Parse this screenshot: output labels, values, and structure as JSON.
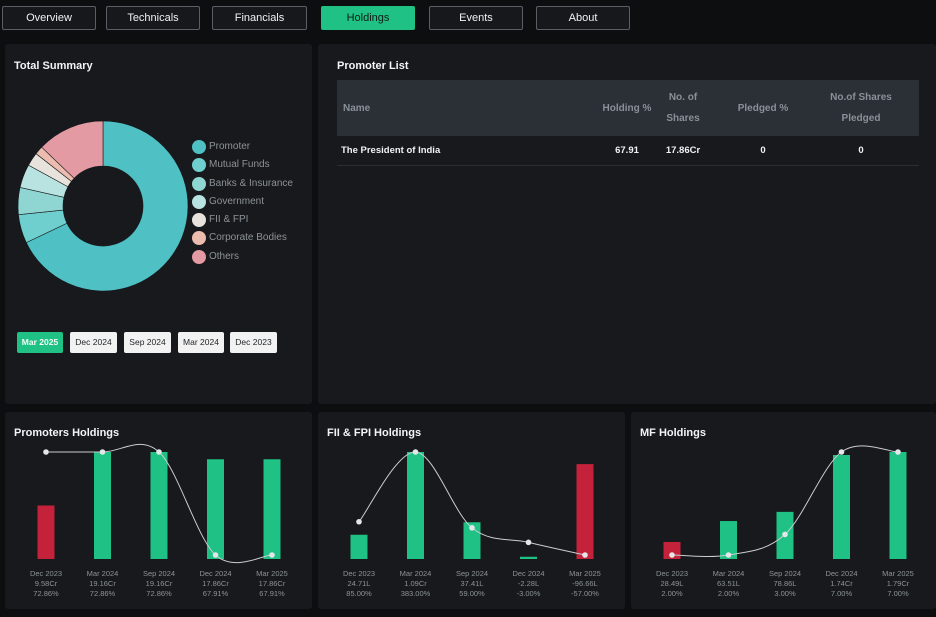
{
  "tabs": [
    {
      "label": "Overview",
      "active": false
    },
    {
      "label": "Technicals",
      "active": false
    },
    {
      "label": "Financials",
      "active": false
    },
    {
      "label": "Holdings",
      "active": true
    },
    {
      "label": "Events",
      "active": false
    },
    {
      "label": "About",
      "active": false
    }
  ],
  "total_summary": {
    "title": "Total Summary",
    "legend": [
      {
        "label": "Promoter",
        "color": "#4fc1c4"
      },
      {
        "label": "Mutual Funds",
        "color": "#6fcfce"
      },
      {
        "label": "Banks & Insurance",
        "color": "#8fd6d3"
      },
      {
        "label": "Government",
        "color": "#b8e3e0"
      },
      {
        "label": "FII & FPI",
        "color": "#e8e2dc"
      },
      {
        "label": "Corporate Bodies",
        "color": "#ecbcae"
      },
      {
        "label": "Others",
        "color": "#e39aa2"
      }
    ],
    "periods": [
      {
        "label": "Mar 2025",
        "active": true
      },
      {
        "label": "Dec 2024",
        "active": false
      },
      {
        "label": "Sep 2024",
        "active": false
      },
      {
        "label": "Mar 2024",
        "active": false
      },
      {
        "label": "Dec 2023",
        "active": false
      }
    ]
  },
  "promoter_list": {
    "title": "Promoter List",
    "headers": {
      "name": "Name",
      "holding": "Holding %",
      "shares_line1": "No. of",
      "shares_line2": "Shares",
      "pledged": "Pledged %",
      "pledged_shares_line1": "No.of Shares",
      "pledged_shares_line2": "Pledged"
    },
    "rows": [
      {
        "name": "The President of India",
        "holding": "67.91",
        "shares": "17.86Cr",
        "pledged": "0",
        "pledged_shares": "0"
      }
    ]
  },
  "chart_data": [
    {
      "type": "bar",
      "title": "Promoters Holdings",
      "categories": [
        "Dec 2023",
        "Mar 2024",
        "Sep 2024",
        "Dec 2024",
        "Mar 2025"
      ],
      "values_text": [
        "9.58Cr",
        "19.16Cr",
        "19.16Cr",
        "17.86Cr",
        "17.86Cr"
      ],
      "values": [
        9.58,
        19.16,
        19.16,
        17.86,
        17.86
      ],
      "change_pct_text": [
        "72.86%",
        "72.86%",
        "72.86%",
        "67.91%",
        "67.91%"
      ],
      "change_pct": [
        72.86,
        72.86,
        72.86,
        67.91,
        67.91
      ],
      "bar_colors": [
        "#c4223a",
        "#1fc184",
        "#1fc184",
        "#1fc184",
        "#1fc184"
      ]
    },
    {
      "type": "bar",
      "title": "FII & FPI Holdings",
      "categories": [
        "Dec 2023",
        "Mar 2024",
        "Sep 2024",
        "Dec 2024",
        "Mar 2025"
      ],
      "values_text": [
        "24.71L",
        "1.09Cr",
        "37.41L",
        "-2.28L",
        "-96.66L"
      ],
      "values": [
        24.71,
        109,
        37.41,
        -2.28,
        -96.66
      ],
      "change_pct_text": [
        "85.00%",
        "383.00%",
        "59.00%",
        "-3.00%",
        "-57.00%"
      ],
      "change_pct": [
        85,
        383,
        59,
        -3,
        -57
      ],
      "bar_colors": [
        "#1fc184",
        "#1fc184",
        "#1fc184",
        "#1fc184",
        "#c4223a"
      ]
    },
    {
      "type": "bar",
      "title": "MF Holdings",
      "categories": [
        "Dec 2023",
        "Mar 2024",
        "Sep 2024",
        "Dec 2024",
        "Mar 2025"
      ],
      "values_text": [
        "28.49L",
        "63.51L",
        "78.86L",
        "1.74Cr",
        "1.79Cr"
      ],
      "values": [
        28.49,
        63.51,
        78.86,
        174,
        179
      ],
      "change_pct_text": [
        "2.00%",
        "2.00%",
        "3.00%",
        "7.00%",
        "7.00%"
      ],
      "change_pct": [
        2,
        2,
        3,
        7,
        7
      ],
      "bar_colors": [
        "#c4223a",
        "#1fc184",
        "#1fc184",
        "#1fc184",
        "#1fc184"
      ]
    }
  ]
}
